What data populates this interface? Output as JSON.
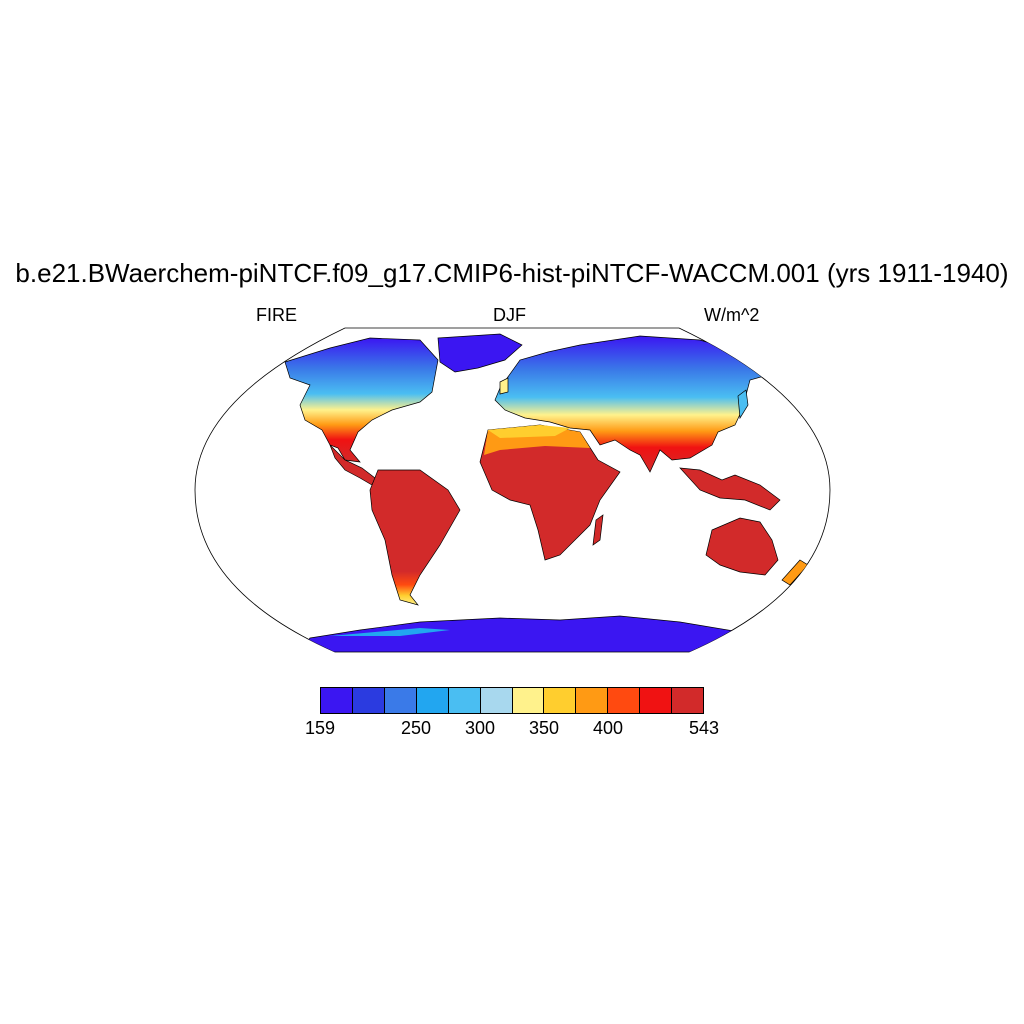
{
  "title": "b.e21.BWaerchem-piNTCF.f09_g17.CMIP6-hist-piNTCF-WACCM.001 (yrs 1911-1940)",
  "subtitle_left": "FIRE",
  "subtitle_center": "DJF",
  "subtitle_right": "W/m^2",
  "projection": "Robinson",
  "colorbar": {
    "colors": [
      "#3b16f2",
      "#2b3be0",
      "#3a7ae8",
      "#22a6f0",
      "#4abef2",
      "#a8d8ee",
      "#fff28c",
      "#ffce2e",
      "#ff9a14",
      "#ff4a10",
      "#f01212",
      "#d22a2a"
    ],
    "tick_labels": [
      "159",
      "250",
      "300",
      "350",
      "400",
      "543"
    ]
  },
  "legend": {
    "low_color": "#3b16f2",
    "high_color": "#d22a2a"
  }
}
